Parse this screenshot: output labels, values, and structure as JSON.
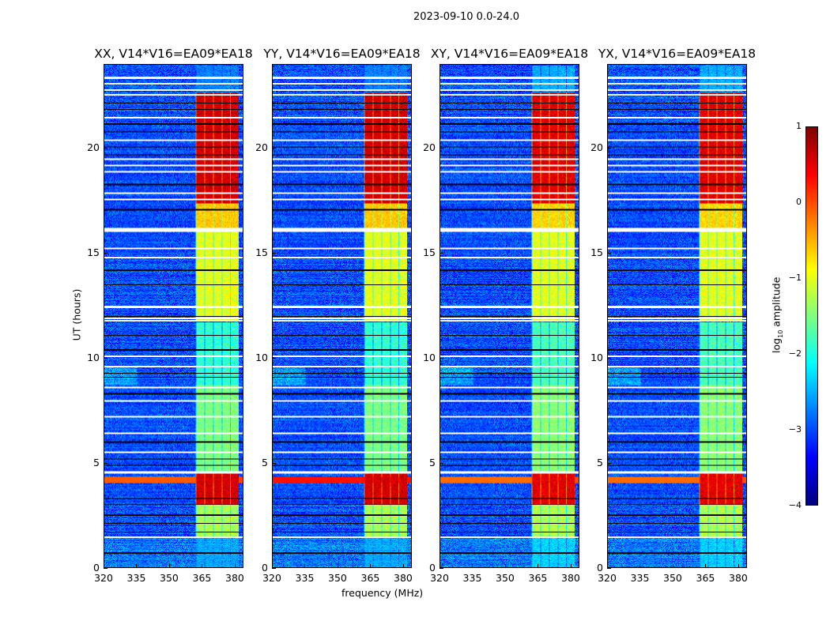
{
  "chart_data": {
    "type": "heatmap",
    "title": "2023-09-10 0.0-24.0",
    "panels": [
      {
        "title": "XX, V14*V16=EA09*EA18",
        "band_strength": 1.0,
        "rfi_420_strength": 0.6
      },
      {
        "title": "YY, V14*V16=EA09*EA18",
        "band_strength": 1.0,
        "rfi_420_strength": 1.0
      },
      {
        "title": "XY, V14*V16=EA09*EA18",
        "band_strength": 0.85,
        "rfi_420_strength": 0.5
      },
      {
        "title": "YX, V14*V16=EA09*EA18",
        "band_strength": 0.85,
        "rfi_420_strength": 0.5
      }
    ],
    "xlabel": "frequency (MHz)",
    "ylabel": "UT (hours)",
    "xlim": [
      320,
      384
    ],
    "ylim": [
      0,
      24
    ],
    "xticks": [
      "320",
      "335",
      "350",
      "365",
      "380"
    ],
    "xtick_values": [
      320,
      335,
      350,
      365,
      380
    ],
    "yticks": [
      "0",
      "5",
      "10",
      "15",
      "20"
    ],
    "ytick_values": [
      0,
      5,
      10,
      15,
      20
    ],
    "colormap": "jet",
    "colorbar": {
      "label_prefix": "log",
      "label_sub": "10",
      "label_suffix": " amplitude",
      "range": [
        -4,
        1
      ],
      "ticks": [
        "1",
        "0",
        "−1",
        "−2",
        "−3",
        "−4"
      ],
      "tick_values": [
        1,
        0,
        -1,
        -2,
        -3,
        -4
      ]
    },
    "background_level": -3.0,
    "rfi_band_mhz": [
      362,
      382
    ],
    "rfi_band_levels_by_time": [
      {
        "from": 0.0,
        "to": 1.5,
        "level": -2.6
      },
      {
        "from": 1.5,
        "to": 3.0,
        "level": -1.3
      },
      {
        "from": 3.0,
        "to": 4.5,
        "level": 0.6
      },
      {
        "from": 4.5,
        "to": 8.7,
        "level": -1.5
      },
      {
        "from": 8.7,
        "to": 11.7,
        "level": -1.9
      },
      {
        "from": 11.8,
        "to": 16.1,
        "level": -1.0
      },
      {
        "from": 16.1,
        "to": 17.4,
        "level": -0.6
      },
      {
        "from": 17.4,
        "to": 22.7,
        "level": 0.6
      },
      {
        "from": 22.7,
        "to": 24.0,
        "level": -2.8
      }
    ],
    "flagged_hours_white": [
      1.45,
      4.55,
      5.5,
      6.4,
      7.2,
      7.95,
      8.6,
      9.6,
      10.1,
      11.8,
      11.9,
      12.45,
      14.8,
      15.25,
      16.1,
      16.2,
      17.6,
      17.9,
      18.9,
      19.2,
      19.5,
      20.4,
      21.5,
      22.6,
      22.8,
      23.1,
      23.4
    ],
    "flagged_hours_black": [
      0.7,
      1.7,
      2.1,
      2.5,
      3.0,
      3.3,
      4.9,
      5.2,
      6.0,
      8.3,
      9.1,
      9.3,
      10.4,
      11.1,
      12.0,
      13.5,
      14.2,
      17.1,
      18.3,
      19.7,
      20.1,
      20.8,
      21.2,
      21.9,
      22.2
    ]
  }
}
